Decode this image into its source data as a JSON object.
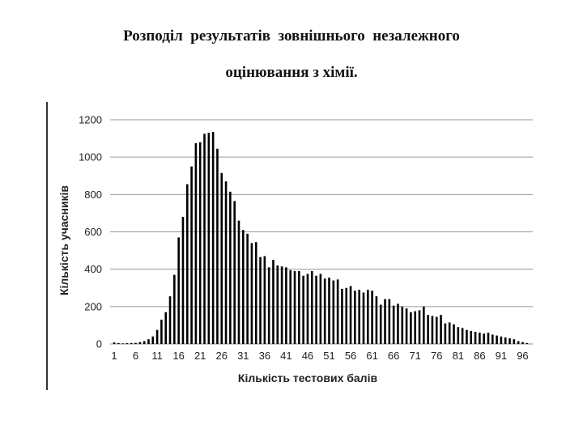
{
  "page": {
    "title_line1": "Розподіл  результатів  зовнішнього  незалежного",
    "title_line2": "оцінювання з хімії."
  },
  "chart_data": {
    "type": "bar",
    "xlabel": "Кількість тестових балів",
    "ylabel": "Кількість учасників",
    "ylim": [
      0,
      1200
    ],
    "yticks": [
      0,
      200,
      400,
      600,
      800,
      1000,
      1200
    ],
    "xtick_labels": [
      "1",
      "6",
      "11",
      "16",
      "21",
      "26",
      "31",
      "36",
      "41",
      "46",
      "51",
      "56",
      "61",
      "66",
      "71",
      "76",
      "81",
      "86",
      "91",
      "96"
    ],
    "grid": true,
    "bar_color": "#000000",
    "x": [
      1,
      2,
      3,
      4,
      5,
      6,
      7,
      8,
      9,
      10,
      11,
      12,
      13,
      14,
      15,
      16,
      17,
      18,
      19,
      20,
      21,
      22,
      23,
      24,
      25,
      26,
      27,
      28,
      29,
      30,
      31,
      32,
      33,
      34,
      35,
      36,
      37,
      38,
      39,
      40,
      41,
      42,
      43,
      44,
      45,
      46,
      47,
      48,
      49,
      50,
      51,
      52,
      53,
      54,
      55,
      56,
      57,
      58,
      59,
      60,
      61,
      62,
      63,
      64,
      65,
      66,
      67,
      68,
      69,
      70,
      71,
      72,
      73,
      74,
      75,
      76,
      77,
      78,
      79,
      80,
      81,
      82,
      83,
      84,
      85,
      86,
      87,
      88,
      89,
      90,
      91,
      92,
      93,
      94,
      95,
      96,
      97
    ],
    "values": [
      8,
      5,
      3,
      4,
      5,
      6,
      10,
      15,
      25,
      40,
      75,
      130,
      170,
      255,
      370,
      570,
      680,
      855,
      950,
      1075,
      1080,
      1125,
      1130,
      1135,
      1045,
      915,
      870,
      815,
      765,
      660,
      610,
      590,
      540,
      545,
      465,
      470,
      410,
      450,
      420,
      415,
      410,
      395,
      390,
      390,
      365,
      375,
      390,
      365,
      375,
      350,
      355,
      340,
      345,
      295,
      300,
      310,
      285,
      290,
      275,
      290,
      285,
      255,
      210,
      240,
      240,
      205,
      215,
      200,
      190,
      170,
      175,
      180,
      200,
      155,
      150,
      145,
      155,
      110,
      115,
      105,
      90,
      85,
      75,
      70,
      65,
      60,
      55,
      60,
      50,
      45,
      40,
      35,
      30,
      25,
      15,
      10,
      5
    ]
  }
}
